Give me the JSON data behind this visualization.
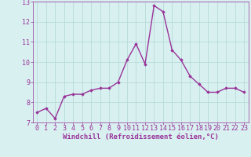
{
  "x": [
    0,
    1,
    2,
    3,
    4,
    5,
    6,
    7,
    8,
    9,
    10,
    11,
    12,
    13,
    14,
    15,
    16,
    17,
    18,
    19,
    20,
    21,
    22,
    23
  ],
  "y": [
    7.5,
    7.7,
    7.2,
    8.3,
    8.4,
    8.4,
    8.6,
    8.7,
    8.7,
    9.0,
    10.1,
    10.9,
    9.9,
    12.8,
    12.5,
    10.6,
    10.1,
    9.3,
    8.9,
    8.5,
    8.5,
    8.7,
    8.7,
    8.5
  ],
  "line_color": "#993399",
  "marker": "D",
  "marker_size": 1.8,
  "background_color": "#d8f0f0",
  "grid_color": "#b8dada",
  "xlabel": "Windchill (Refroidissement éolien,°C)",
  "xlabel_fontsize": 6.5,
  "tick_fontsize": 6.0,
  "ylim": [
    7,
    13
  ],
  "xlim": [
    -0.5,
    23.5
  ],
  "yticks": [
    7,
    8,
    9,
    10,
    11,
    12,
    13
  ],
  "xticks": [
    0,
    1,
    2,
    3,
    4,
    5,
    6,
    7,
    8,
    9,
    10,
    11,
    12,
    13,
    14,
    15,
    16,
    17,
    18,
    19,
    20,
    21,
    22,
    23
  ],
  "xtick_labels": [
    "0",
    "1",
    "2",
    "3",
    "4",
    "5",
    "6",
    "7",
    "8",
    "9",
    "10",
    "11",
    "12",
    "13",
    "14",
    "15",
    "16",
    "17",
    "18",
    "19",
    "20",
    "21",
    "22",
    "23"
  ],
  "line_width": 1.0
}
